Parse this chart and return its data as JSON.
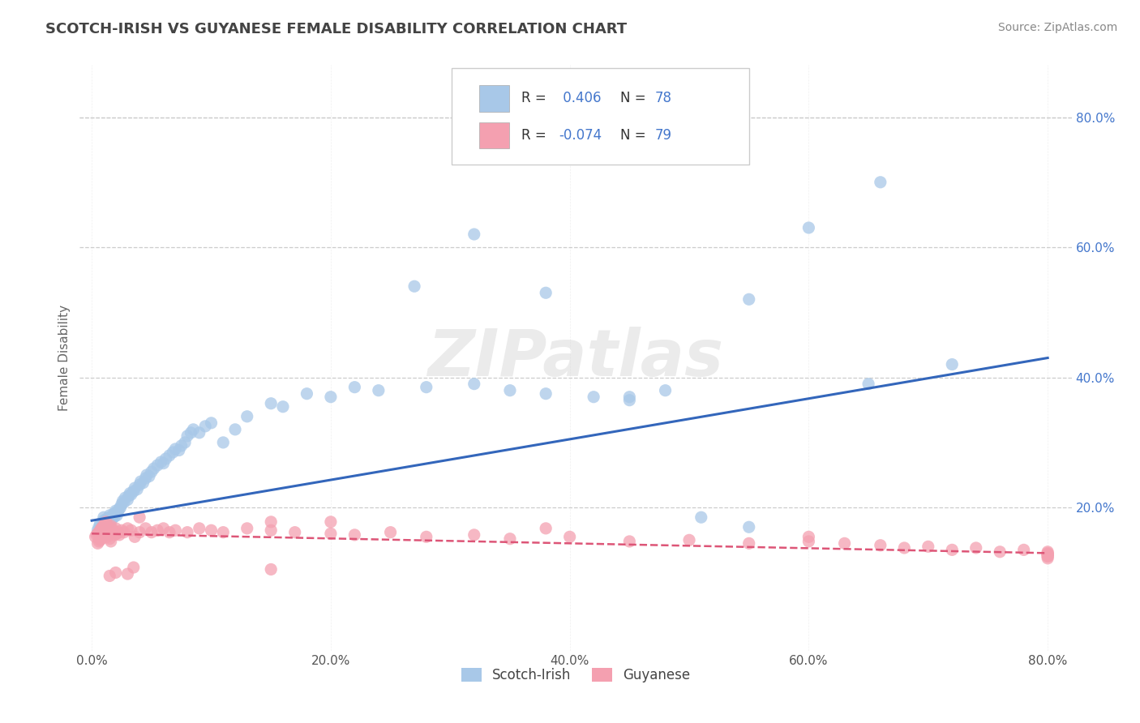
{
  "title": "SCOTCH-IRISH VS GUYANESE FEMALE DISABILITY CORRELATION CHART",
  "source_text": "Source: ZipAtlas.com",
  "ylabel": "Female Disability",
  "xlim": [
    -0.01,
    0.82
  ],
  "ylim": [
    -0.02,
    0.88
  ],
  "xtick_labels": [
    "0.0%",
    "20.0%",
    "40.0%",
    "60.0%",
    "80.0%"
  ],
  "xtick_vals": [
    0.0,
    0.2,
    0.4,
    0.6,
    0.8
  ],
  "ytick_labels": [
    "20.0%",
    "40.0%",
    "60.0%",
    "80.0%"
  ],
  "ytick_vals": [
    0.2,
    0.4,
    0.6,
    0.8
  ],
  "background_color": "#ffffff",
  "grid_color": "#cccccc",
  "title_color": "#444444",
  "scotch_irish_color": "#a8c8e8",
  "guyanese_color": "#f4a0b0",
  "scotch_irish_line_color": "#3366bb",
  "guyanese_line_color": "#dd5577",
  "ytick_color": "#4477cc",
  "xtick_color": "#555555",
  "watermark_text": "ZIPatlas",
  "legend_color_r": "#4477cc",
  "legend_color_n": "#4477cc",
  "scotch_irish_x": [
    0.005,
    0.006,
    0.007,
    0.008,
    0.009,
    0.01,
    0.01,
    0.011,
    0.012,
    0.013,
    0.014,
    0.015,
    0.016,
    0.017,
    0.018,
    0.019,
    0.02,
    0.02,
    0.021,
    0.022,
    0.023,
    0.024,
    0.025,
    0.026,
    0.027,
    0.028,
    0.03,
    0.031,
    0.032,
    0.033,
    0.035,
    0.036,
    0.038,
    0.04,
    0.041,
    0.043,
    0.045,
    0.046,
    0.048,
    0.05,
    0.052,
    0.055,
    0.058,
    0.06,
    0.062,
    0.065,
    0.068,
    0.07,
    0.073,
    0.075,
    0.078,
    0.08,
    0.083,
    0.085,
    0.09,
    0.095,
    0.1,
    0.11,
    0.12,
    0.13,
    0.15,
    0.16,
    0.18,
    0.2,
    0.22,
    0.24,
    0.28,
    0.32,
    0.35,
    0.38,
    0.42,
    0.45,
    0.48,
    0.51,
    0.55,
    0.6,
    0.65,
    0.72
  ],
  "scotch_irish_y": [
    0.165,
    0.17,
    0.175,
    0.168,
    0.172,
    0.18,
    0.185,
    0.178,
    0.182,
    0.176,
    0.184,
    0.188,
    0.179,
    0.183,
    0.19,
    0.186,
    0.192,
    0.195,
    0.188,
    0.194,
    0.198,
    0.2,
    0.205,
    0.21,
    0.208,
    0.215,
    0.212,
    0.218,
    0.222,
    0.22,
    0.225,
    0.23,
    0.228,
    0.235,
    0.24,
    0.238,
    0.245,
    0.25,
    0.248,
    0.255,
    0.26,
    0.265,
    0.27,
    0.268,
    0.275,
    0.28,
    0.285,
    0.29,
    0.288,
    0.295,
    0.3,
    0.31,
    0.315,
    0.32,
    0.315,
    0.325,
    0.33,
    0.3,
    0.32,
    0.34,
    0.36,
    0.355,
    0.375,
    0.37,
    0.385,
    0.38,
    0.385,
    0.39,
    0.38,
    0.375,
    0.37,
    0.365,
    0.38,
    0.185,
    0.52,
    0.63,
    0.39,
    0.42
  ],
  "scotch_irish_outliers_x": [
    0.27,
    0.32,
    0.38,
    0.45,
    0.55,
    0.66
  ],
  "scotch_irish_outliers_y": [
    0.54,
    0.62,
    0.53,
    0.37,
    0.17,
    0.7
  ],
  "guyanese_x": [
    0.003,
    0.004,
    0.005,
    0.005,
    0.006,
    0.006,
    0.007,
    0.007,
    0.008,
    0.008,
    0.009,
    0.009,
    0.01,
    0.01,
    0.011,
    0.011,
    0.012,
    0.012,
    0.013,
    0.013,
    0.014,
    0.014,
    0.015,
    0.015,
    0.016,
    0.016,
    0.017,
    0.018,
    0.019,
    0.02,
    0.021,
    0.022,
    0.023,
    0.025,
    0.027,
    0.03,
    0.033,
    0.036,
    0.04,
    0.045,
    0.05,
    0.055,
    0.06,
    0.065,
    0.07,
    0.08,
    0.09,
    0.1,
    0.11,
    0.13,
    0.15,
    0.17,
    0.2,
    0.22,
    0.25,
    0.28,
    0.32,
    0.35,
    0.4,
    0.45,
    0.5,
    0.55,
    0.6,
    0.63,
    0.66,
    0.68,
    0.7,
    0.72,
    0.74,
    0.76,
    0.78,
    0.8,
    0.8,
    0.8,
    0.8,
    0.8,
    0.8,
    0.8,
    0.8
  ],
  "guyanese_y": [
    0.155,
    0.158,
    0.145,
    0.16,
    0.148,
    0.162,
    0.15,
    0.165,
    0.152,
    0.168,
    0.155,
    0.17,
    0.158,
    0.172,
    0.16,
    0.175,
    0.163,
    0.178,
    0.165,
    0.155,
    0.168,
    0.158,
    0.17,
    0.152,
    0.172,
    0.148,
    0.162,
    0.165,
    0.158,
    0.168,
    0.16,
    0.162,
    0.158,
    0.165,
    0.162,
    0.168,
    0.165,
    0.155,
    0.162,
    0.168,
    0.162,
    0.165,
    0.168,
    0.162,
    0.165,
    0.162,
    0.168,
    0.165,
    0.162,
    0.168,
    0.165,
    0.162,
    0.16,
    0.158,
    0.162,
    0.155,
    0.158,
    0.152,
    0.155,
    0.148,
    0.15,
    0.145,
    0.148,
    0.145,
    0.142,
    0.138,
    0.14,
    0.135,
    0.138,
    0.132,
    0.135,
    0.13,
    0.128,
    0.132,
    0.128,
    0.125,
    0.128,
    0.125,
    0.122
  ],
  "guyanese_outliers_x": [
    0.015,
    0.02,
    0.03,
    0.035,
    0.04,
    0.15,
    0.2,
    0.38,
    0.15,
    0.6
  ],
  "guyanese_outliers_y": [
    0.095,
    0.1,
    0.098,
    0.108,
    0.185,
    0.178,
    0.178,
    0.168,
    0.105,
    0.155
  ]
}
